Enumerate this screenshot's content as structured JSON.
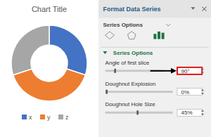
{
  "chart_data": {
    "type": "doughnut",
    "title": "Chart Title",
    "categories": [
      "x",
      "y",
      "z"
    ],
    "values": [
      30,
      40,
      30
    ],
    "colors": [
      "#4472c4",
      "#ed7d31",
      "#a6a6a6"
    ],
    "legend": "bottom",
    "annotations": [
      "Format Data Series",
      "Series Options",
      "Series Options",
      "Angle of first slice",
      "90°",
      "Doughnut Explosion",
      "0%",
      "Doughnut Hole Size",
      "45%"
    ]
  }
}
